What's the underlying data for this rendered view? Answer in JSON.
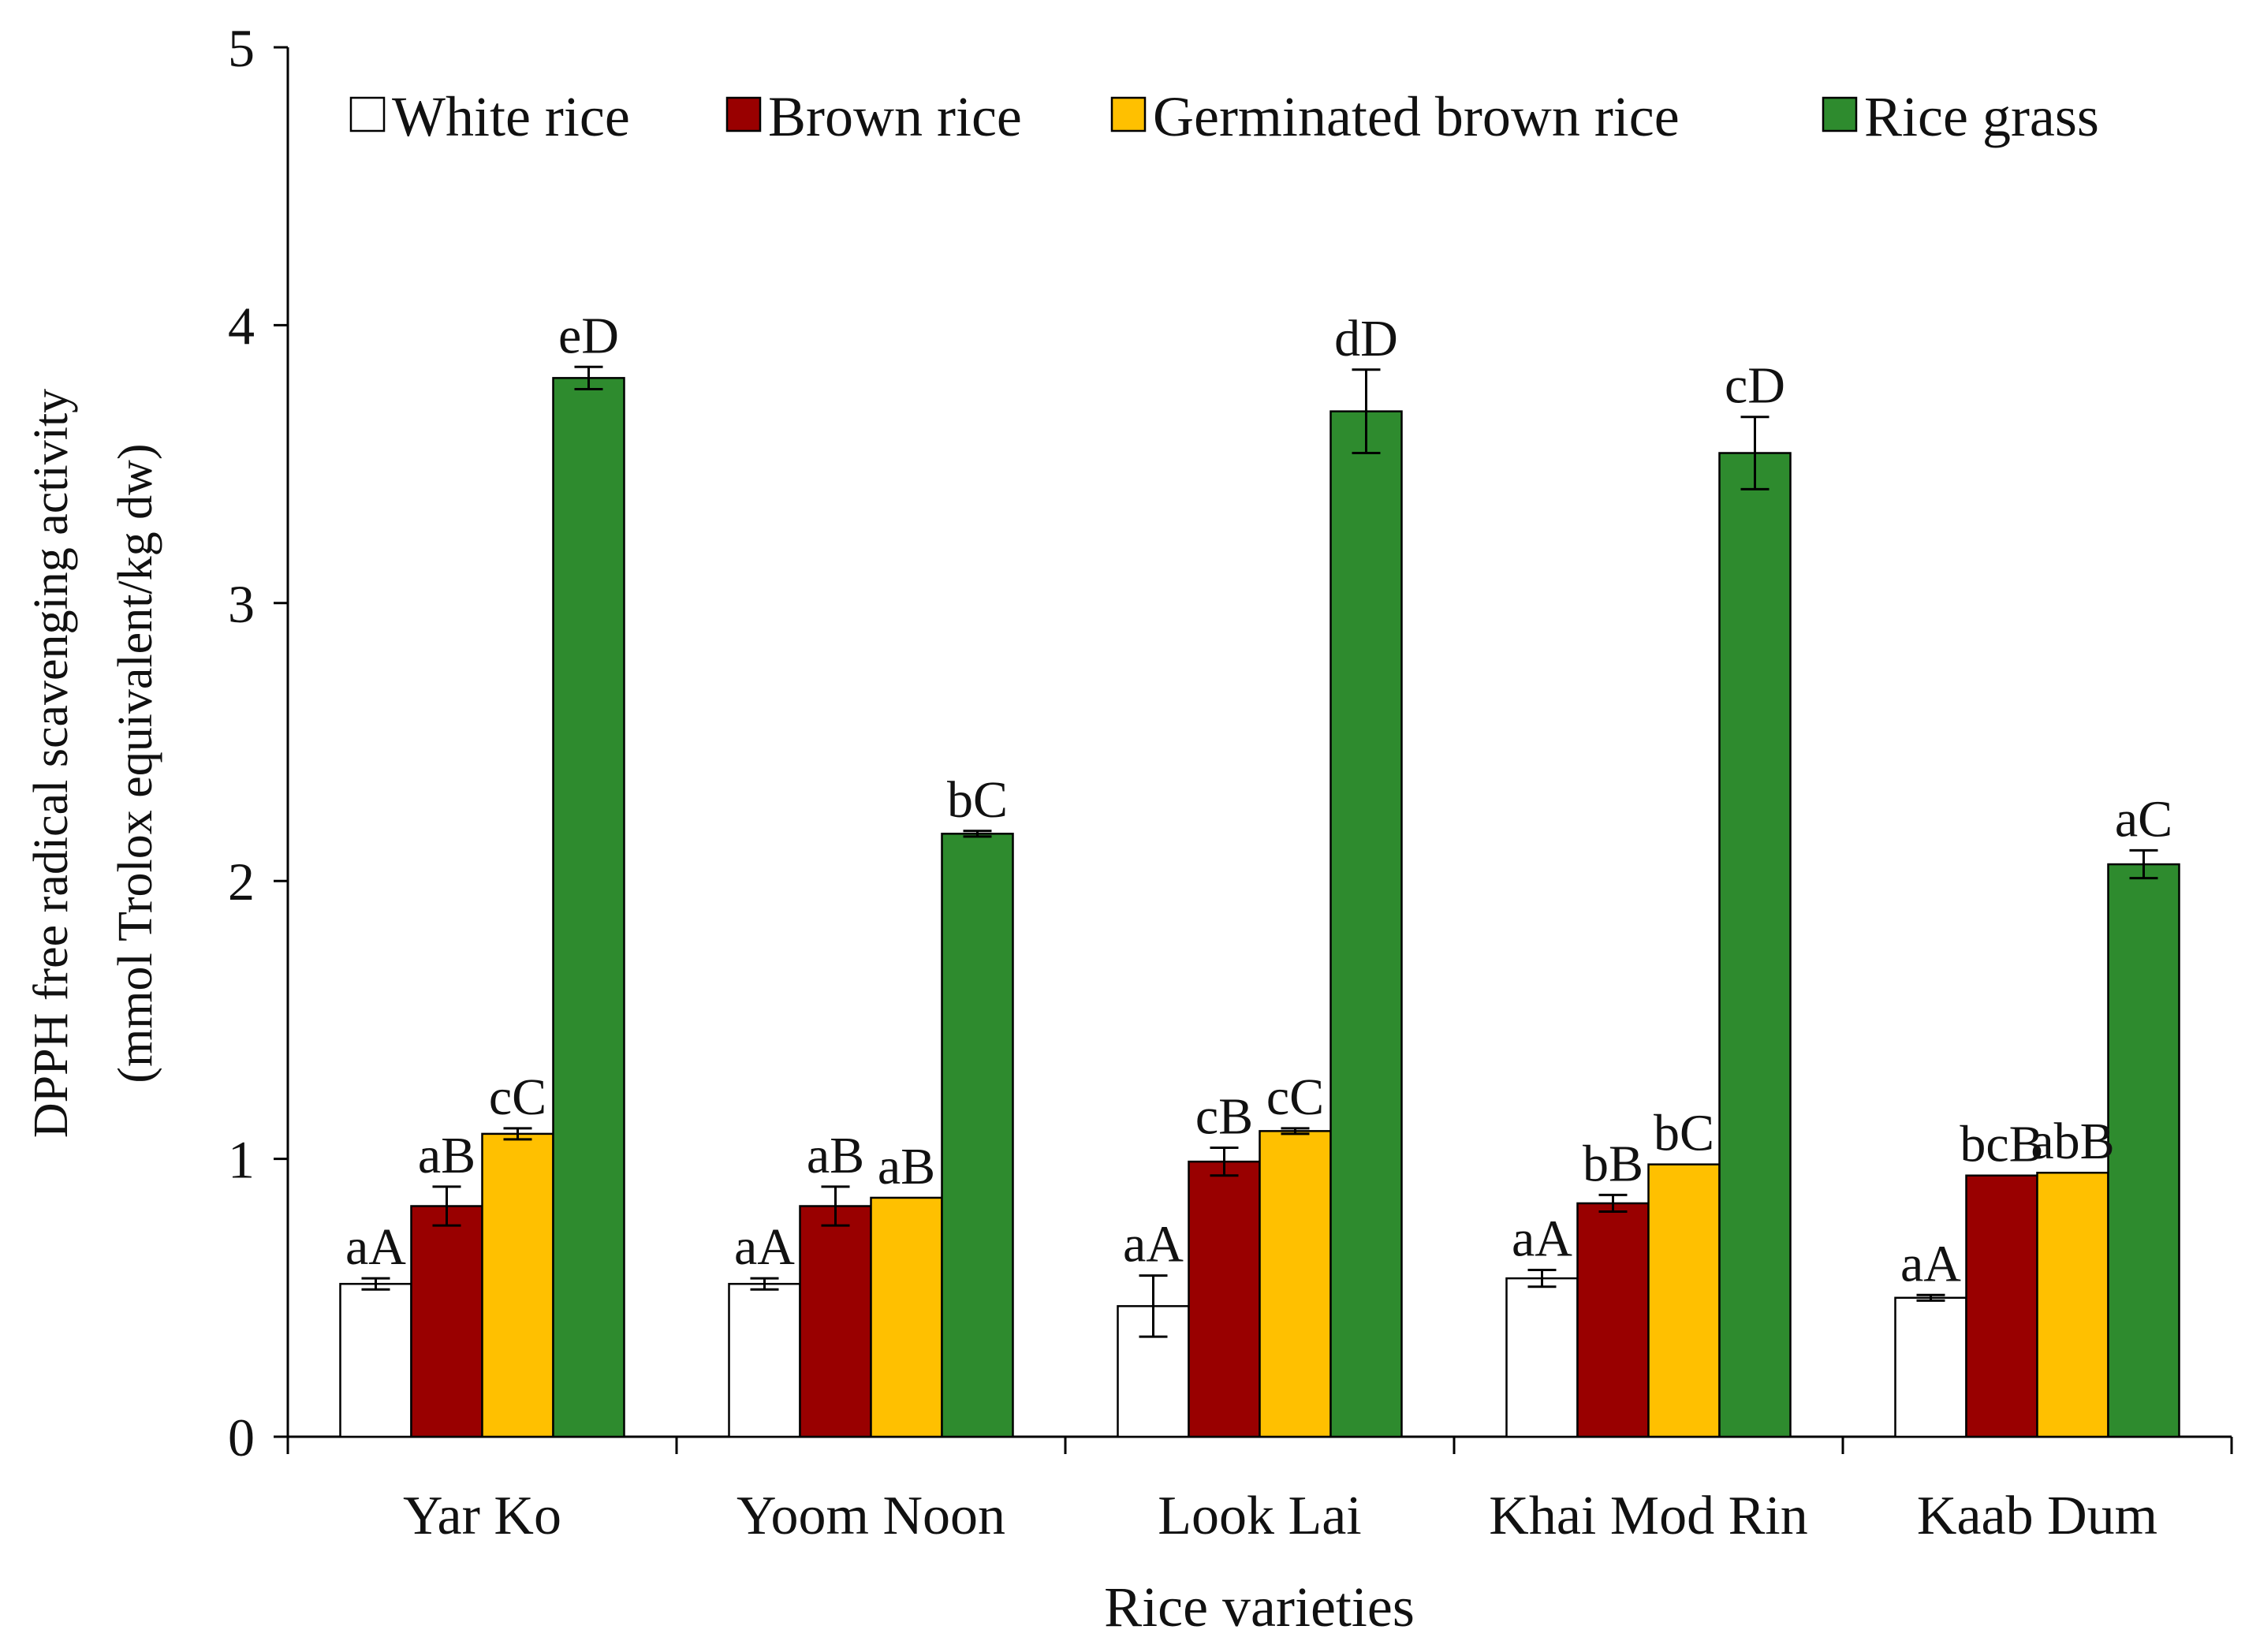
{
  "chart_data": {
    "type": "bar",
    "ylabel_line1": "DPPH free radical scavenging activity",
    "ylabel_line2": "(mmol Trolox equivalent/kg dw)",
    "xlabel": "Rice varieties",
    "ylim": [
      0,
      5
    ],
    "yticks": [
      "0",
      "1",
      "2",
      "3",
      "4",
      "5"
    ],
    "legend_position": "top",
    "categories": [
      "Yar Ko",
      "Yoom Noon",
      "Look Lai",
      "Khai Mod Rin",
      "Kaab Dum"
    ],
    "series": [
      {
        "name": "White rice",
        "color": "#ffffff",
        "values": [
          0.55,
          0.55,
          0.47,
          0.57,
          0.5
        ],
        "errors": [
          0.02,
          0.02,
          0.11,
          0.03,
          0.01
        ],
        "labels": [
          "aA",
          "aA",
          "aA",
          "aA",
          "aA"
        ]
      },
      {
        "name": "Brown rice",
        "color": "#990000",
        "values": [
          0.83,
          0.83,
          0.99,
          0.84,
          0.94
        ],
        "errors": [
          0.07,
          0.07,
          0.05,
          0.03,
          0.0
        ],
        "labels": [
          "aB",
          "aB",
          "cB",
          "bB",
          "bcB"
        ]
      },
      {
        "name": "Germinated brown rice",
        "color": "#ffc000",
        "values": [
          1.09,
          0.86,
          1.1,
          0.98,
          0.95
        ],
        "errors": [
          0.02,
          0.0,
          0.01,
          0.0,
          0.0
        ],
        "labels": [
          "cC",
          "aB",
          "cC",
          "bC",
          "abB"
        ]
      },
      {
        "name": "Rice grass",
        "color": "#2e8b2e",
        "values": [
          3.81,
          2.17,
          3.69,
          3.54,
          2.06
        ],
        "errors": [
          0.04,
          0.01,
          0.15,
          0.13,
          0.05
        ],
        "labels": [
          "eD",
          "bC",
          "dD",
          "cD",
          "aC"
        ]
      }
    ]
  }
}
